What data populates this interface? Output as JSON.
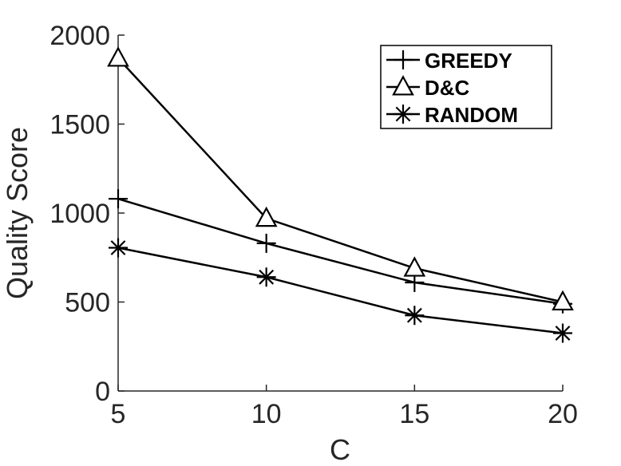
{
  "chart_data": {
    "type": "line",
    "title": "",
    "xlabel": "C",
    "ylabel": "Quality Score",
    "x": [
      5,
      10,
      15,
      20
    ],
    "xlim": [
      5,
      20
    ],
    "ylim": [
      0,
      2000
    ],
    "xticks": [
      5,
      10,
      15,
      20
    ],
    "yticks": [
      0,
      500,
      1000,
      1500,
      2000
    ],
    "xtick_labels": [
      "5",
      "10",
      "15",
      "20"
    ],
    "ytick_labels": [
      "0",
      "500",
      "1000",
      "1500",
      "2000"
    ],
    "grid": false,
    "legend_position": "top-right",
    "series": [
      {
        "name": "GREEDY",
        "marker": "plus",
        "values": [
          1080,
          830,
          610,
          490
        ]
      },
      {
        "name": "D&C",
        "marker": "triangle",
        "values": [
          1870,
          970,
          690,
          500
        ]
      },
      {
        "name": "RANDOM",
        "marker": "star",
        "values": [
          805,
          640,
          425,
          325
        ]
      }
    ],
    "colors": {
      "line": "#000000",
      "axis": "#262626"
    }
  }
}
